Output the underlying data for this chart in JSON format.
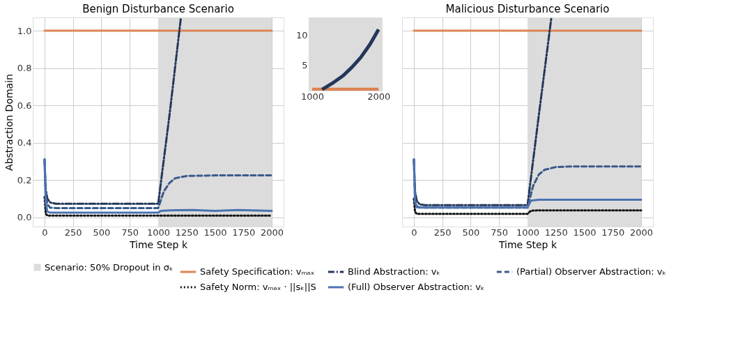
{
  "chart_data": [
    {
      "type": "line",
      "title": "Benign Disturbance Scenario",
      "xlabel": "Time Step k",
      "ylabel": "Abstraction Domain",
      "xlim": [
        -104,
        2104
      ],
      "ylim": [
        -0.049,
        1.071
      ],
      "xticks": [
        0,
        250,
        500,
        750,
        1000,
        1250,
        1500,
        1750,
        2000
      ],
      "yticks": [
        {
          "value": 0,
          "label": "0.0"
        },
        {
          "value": 0.2,
          "label": "0.2"
        },
        {
          "value": 0.4,
          "label": "0.4"
        },
        {
          "value": 0.6,
          "label": "0.6"
        },
        {
          "value": 0.8,
          "label": "0.8"
        },
        {
          "value": 1.0,
          "label": "1.0"
        }
      ],
      "grid": true,
      "legend": "bottom",
      "bands": [
        {
          "axis": "x",
          "from": 1000,
          "to": 2000,
          "label": "Scenario: 50% Dropout in σₖ",
          "color": "#dcdcdc"
        }
      ],
      "series": [
        {
          "name": "Safety Specification: vₘₐₓ",
          "color": "#dd8452",
          "line_style": "solid",
          "x": [
            0,
            2000
          ],
          "values": [
            1.0,
            1.0
          ]
        },
        {
          "name": "Blind Abstraction: vₖ",
          "color": "#233759",
          "line_style": "dashdot",
          "x": [
            0,
            10,
            25,
            50,
            100,
            1000,
            1100,
            1200
          ],
          "values": [
            0.31,
            0.15,
            0.1,
            0.08,
            0.073,
            0.073,
            0.55,
            1.07
          ]
        },
        {
          "name": "(Partial) Observer Abstraction: vₖ",
          "color": "#3a5a8a",
          "line_style": "dashed",
          "x": [
            0,
            10,
            25,
            50,
            100,
            1000,
            1050,
            1100,
            1150,
            1250,
            1500,
            2000
          ],
          "values": [
            0.31,
            0.12,
            0.07,
            0.052,
            0.05,
            0.05,
            0.14,
            0.185,
            0.21,
            0.222,
            0.225,
            0.225
          ]
        },
        {
          "name": "Safety Norm: vₘₐₓ · ||sₖ||S",
          "color": "#111111",
          "line_style": "dotted",
          "x": [
            0,
            10,
            25,
            50,
            1000,
            2000
          ],
          "values": [
            0.11,
            0.02,
            0.01,
            0.01,
            0.01,
            0.01
          ]
        },
        {
          "name": "(Full) Observer Abstraction: vₖ",
          "color": "#4c72b0",
          "line_style": "solid",
          "x": [
            0,
            10,
            25,
            50,
            1000,
            1025,
            1100,
            1300,
            1500,
            1700,
            2000
          ],
          "values": [
            0.31,
            0.08,
            0.03,
            0.026,
            0.026,
            0.035,
            0.038,
            0.04,
            0.035,
            0.04,
            0.035
          ]
        }
      ]
    },
    {
      "type": "line",
      "title": "Malicious Disturbance Scenario",
      "xlabel": "Time Step k",
      "xlim": [
        -104,
        2104
      ],
      "ylim": [
        -0.049,
        1.071
      ],
      "xticks": [
        0,
        250,
        500,
        750,
        1000,
        1250,
        1500,
        1750,
        2000
      ],
      "yticks": [
        0,
        0.2,
        0.4,
        0.6,
        0.8,
        1.0
      ],
      "tick_labels": "x",
      "grid": true,
      "legend": "bottom",
      "bands": [
        {
          "axis": "x",
          "from": 1000,
          "to": 2000,
          "color": "#dcdcdc"
        }
      ],
      "series": [
        {
          "name": "Safety Specification: vₘₐₓ",
          "color": "#dd8452",
          "line_style": "solid",
          "x": [
            0,
            2000
          ],
          "values": [
            1.0,
            1.0
          ]
        },
        {
          "name": "Blind Abstraction: vₖ",
          "color": "#233759",
          "line_style": "dashdot",
          "x": [
            0,
            10,
            25,
            50,
            100,
            1000,
            1100,
            1210
          ],
          "values": [
            0.31,
            0.14,
            0.09,
            0.07,
            0.066,
            0.066,
            0.55,
            1.07
          ]
        },
        {
          "name": "(Partial) Observer Abstraction: vₖ",
          "color": "#3a5a8a",
          "line_style": "dashed",
          "x": [
            0,
            10,
            25,
            50,
            100,
            1000,
            1050,
            1100,
            1150,
            1250,
            1400,
            2000
          ],
          "values": [
            0.31,
            0.1,
            0.06,
            0.055,
            0.053,
            0.053,
            0.17,
            0.23,
            0.255,
            0.27,
            0.273,
            0.273
          ]
        },
        {
          "name": "Safety Norm: vₘₐₓ · ||sₖ||S",
          "color": "#111111",
          "line_style": "dotted",
          "x": [
            0,
            10,
            25,
            1000,
            1030,
            1100,
            2000
          ],
          "values": [
            0.1,
            0.03,
            0.019,
            0.019,
            0.036,
            0.038,
            0.038
          ]
        },
        {
          "name": "(Full) Observer Abstraction: vₖ",
          "color": "#4c72b0",
          "line_style": "solid",
          "x": [
            0,
            10,
            25,
            50,
            1000,
            1030,
            1100,
            2000
          ],
          "values": [
            0.31,
            0.08,
            0.055,
            0.053,
            0.053,
            0.09,
            0.095,
            0.095
          ]
        }
      ]
    },
    {
      "type": "line",
      "xlim": [
        948,
        2050
      ],
      "ylim": [
        0.8,
        13
      ],
      "xticks": [
        1000,
        2000
      ],
      "yticks": [
        5,
        10
      ],
      "grid": true,
      "bands": [
        {
          "axis": "x",
          "from": 948,
          "to": 2050,
          "color": "#dcdcdc"
        }
      ],
      "series": [
        {
          "color": "#dd8452",
          "line_style": "solid",
          "x": [
            1000,
            2000
          ],
          "values": [
            1.0,
            1.0
          ]
        },
        {
          "color": "#233759",
          "line_style": "solid",
          "x": [
            1150,
            1300,
            1467,
            1600,
            1730,
            1870,
            2000
          ],
          "values": [
            1.0,
            2.0,
            3.3,
            4.7,
            6.3,
            8.5,
            11.0
          ]
        }
      ]
    }
  ]
}
